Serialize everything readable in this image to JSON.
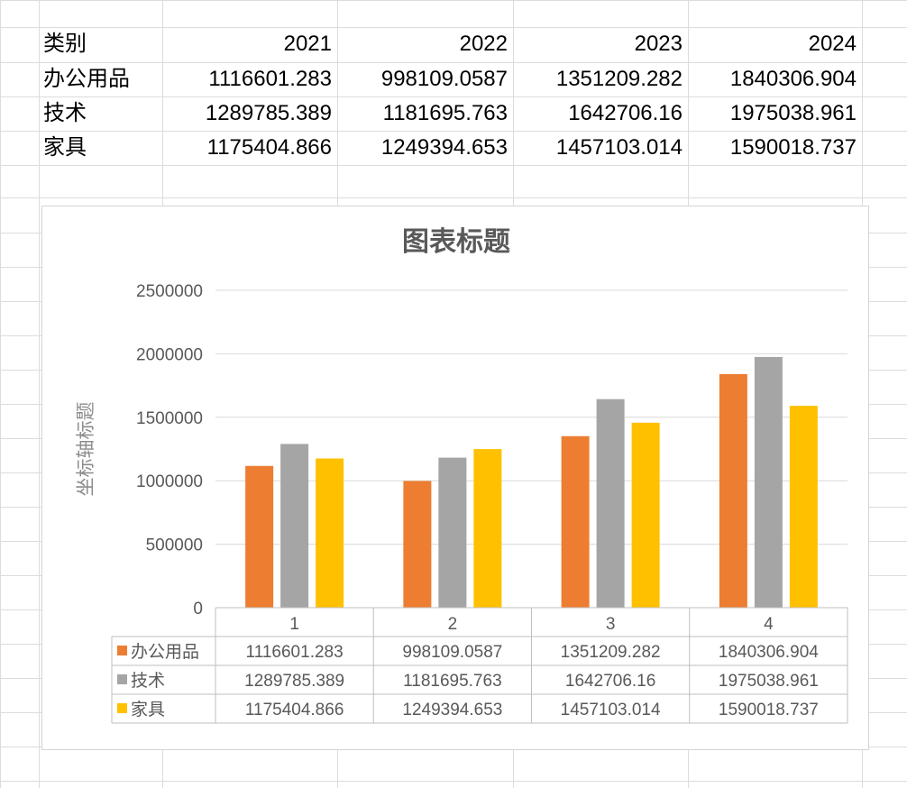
{
  "sheet": {
    "header": [
      "类别",
      "2021",
      "2022",
      "2023",
      "2024"
    ],
    "rows": [
      [
        "办公用品",
        "1116601.283",
        "998109.0587",
        "1351209.282",
        "1840306.904"
      ],
      [
        "技术",
        "1289785.389",
        "1181695.763",
        "1642706.16",
        "1975038.961"
      ],
      [
        "家具",
        "1175404.866",
        "1249394.653",
        "1457103.014",
        "1590018.737"
      ]
    ]
  },
  "colors": {
    "series": [
      "#ED7D31",
      "#A5A5A5",
      "#FFC000"
    ],
    "gridline": "#d9d9d9",
    "cell_border": "#dcdcdc"
  },
  "chart_data": {
    "type": "bar",
    "title": "图表标题",
    "xlabel": "",
    "ylabel": "坐标轴标题",
    "categories": [
      "1",
      "2",
      "3",
      "4"
    ],
    "ylim": [
      0,
      2500000
    ],
    "yticks": [
      0,
      500000,
      1000000,
      1500000,
      2000000,
      2500000
    ],
    "grid": true,
    "legend": "data-table",
    "series": [
      {
        "name": "办公用品",
        "values": [
          1116601.283,
          998109.0587,
          1351209.282,
          1840306.904
        ],
        "labels": [
          "1116601.283",
          "998109.0587",
          "1351209.282",
          "1840306.904"
        ]
      },
      {
        "name": "技术",
        "values": [
          1289785.389,
          1181695.763,
          1642706.16,
          1975038.961
        ],
        "labels": [
          "1289785.389",
          "1181695.763",
          "1642706.16",
          "1975038.961"
        ]
      },
      {
        "name": "家具",
        "values": [
          1175404.866,
          1249394.653,
          1457103.014,
          1590018.737
        ],
        "labels": [
          "1175404.866",
          "1249394.653",
          "1457103.014",
          "1590018.737"
        ]
      }
    ]
  }
}
